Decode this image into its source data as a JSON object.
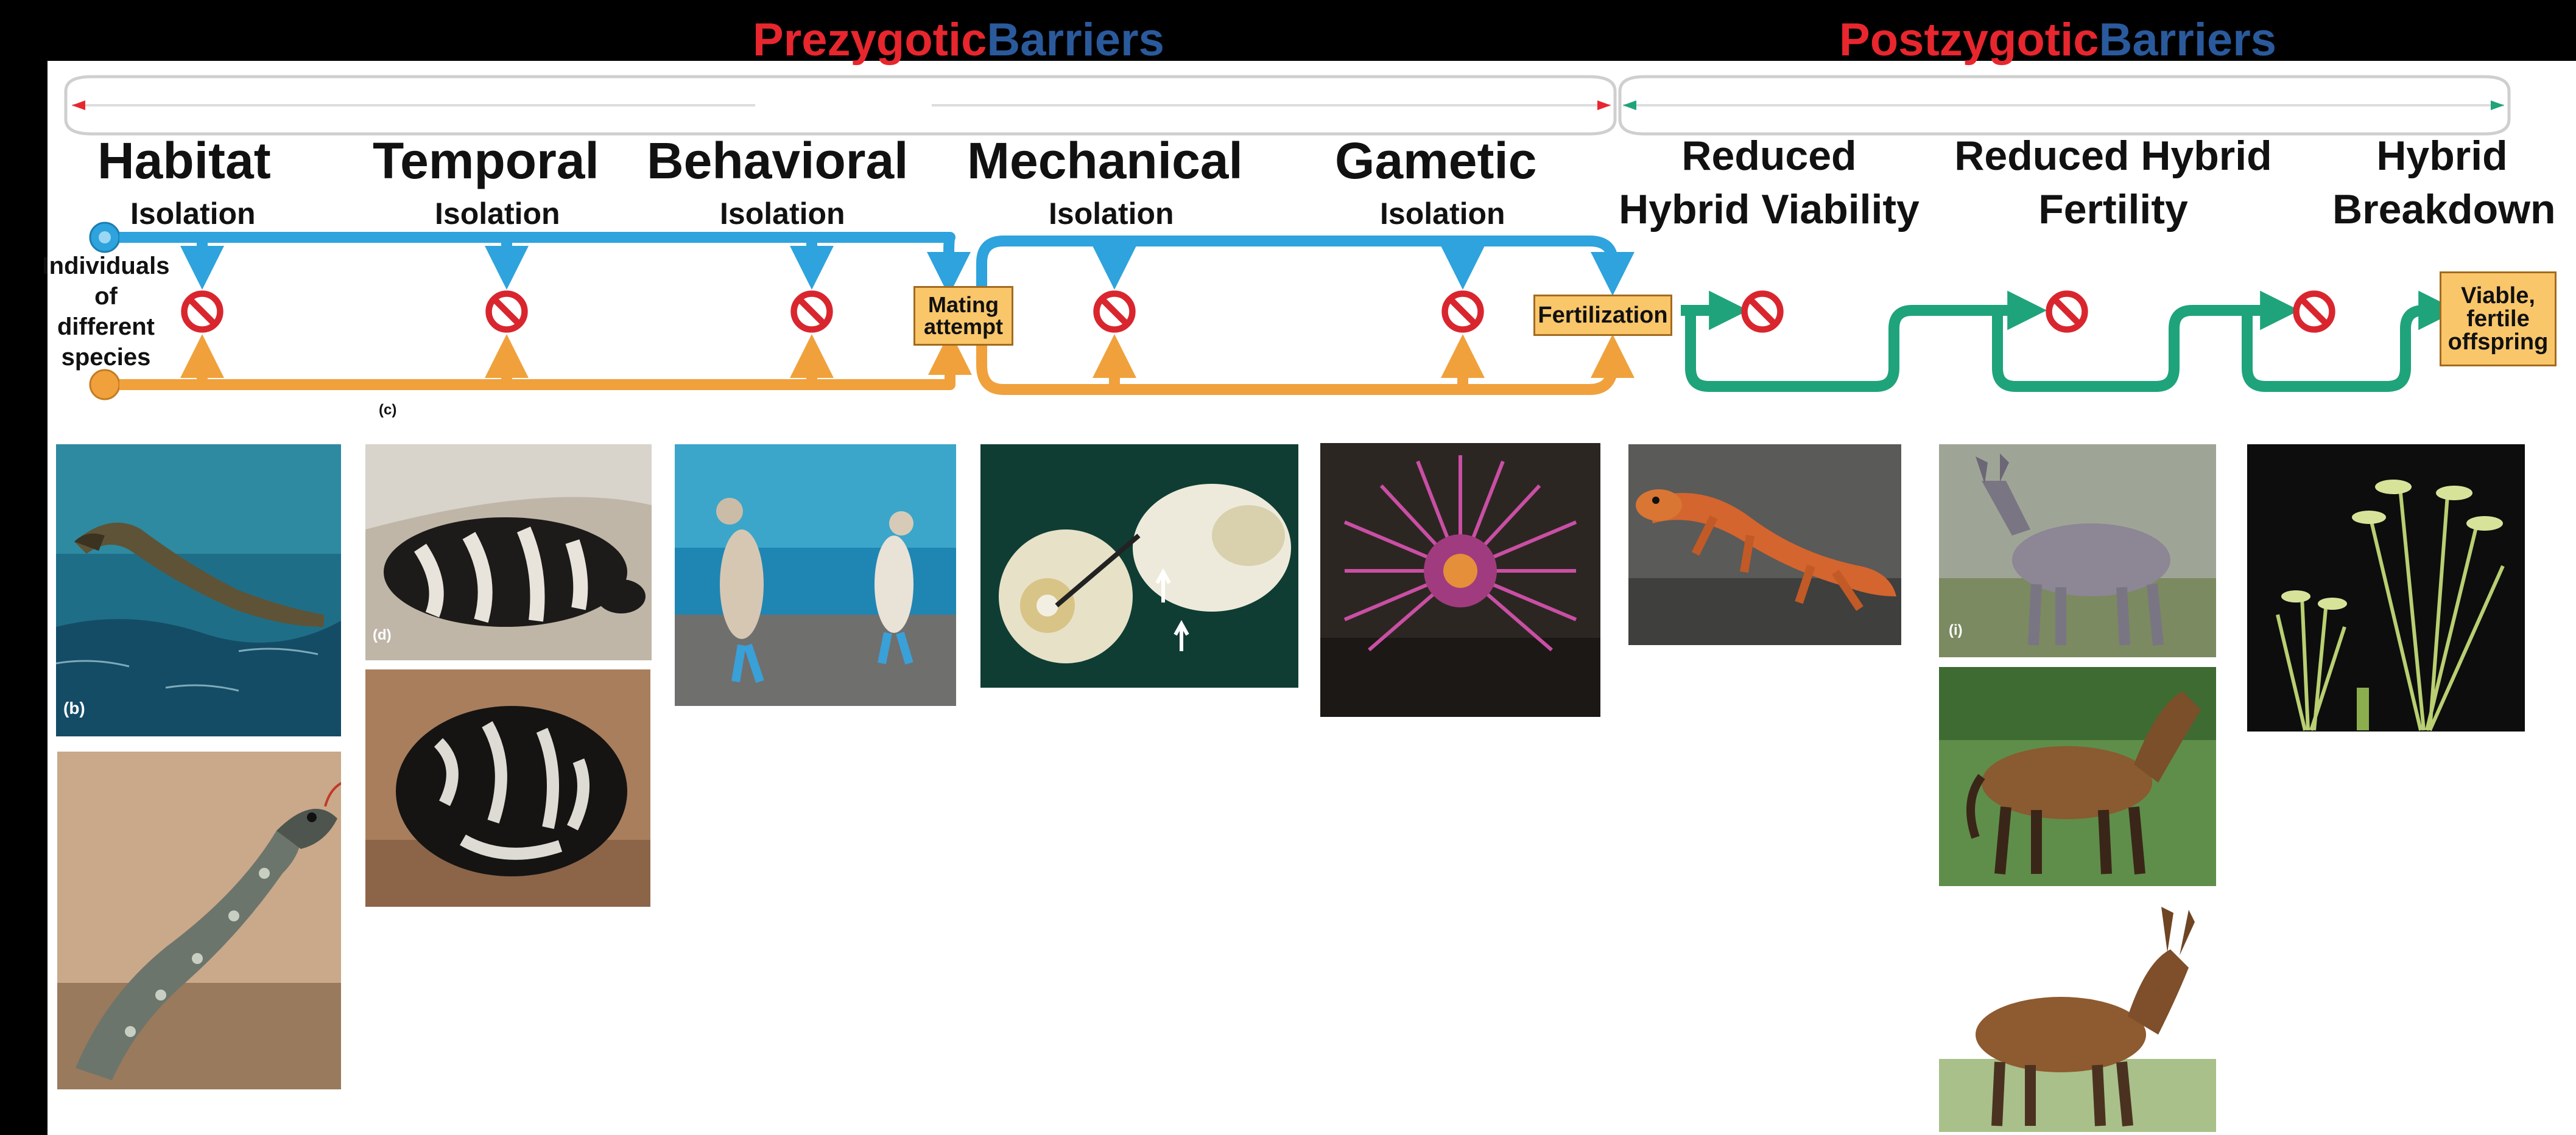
{
  "headers": {
    "prezygotic": {
      "word1": "Prezygotic",
      "word2": "Barriers"
    },
    "postzygotic": {
      "word1": "Postzygotic",
      "word2": "Barriers"
    }
  },
  "barriers": {
    "habitat": {
      "title": "Habitat",
      "subtitle": "Isolation"
    },
    "temporal": {
      "title": "Temporal",
      "subtitle": "Isolation"
    },
    "behavioral": {
      "title": "Behavioral",
      "subtitle": "Isolation"
    },
    "mechanical": {
      "title": "Mechanical",
      "subtitle": "Isolation"
    },
    "gametic": {
      "title": "Gametic",
      "subtitle": "Isolation"
    },
    "reduced_viability": {
      "title": "Reduced\nHybrid Viability"
    },
    "reduced_fertility": {
      "title": "Reduced Hybrid\nFertility"
    },
    "hybrid_breakdown": {
      "title": "Hybrid\nBreakdown"
    }
  },
  "flow": {
    "individuals_label": "Individuals\nof\ndifferent\nspecies",
    "mating_attempt": "Mating\nattempt",
    "fertilization": "Fertilization",
    "outcome": "Viable,\nfertile\noffspring"
  },
  "panel_letters": {
    "b": "(b)",
    "c": "(c)",
    "d": "(d)",
    "i": "(i)"
  },
  "colors": {
    "prezygotic_red": "#e8262e",
    "barriers_blue": "#2a5a9c",
    "species1_blue": "#2ea3dd",
    "species2_orange": "#f0a13c",
    "hybrid_green": "#1fa37a",
    "block_red": "#d9262e",
    "box_fill": "#f9c66a"
  },
  "icons": {
    "block": "no-entry-icon",
    "species1": "blue-dot-icon",
    "species2": "orange-dot-icon"
  }
}
